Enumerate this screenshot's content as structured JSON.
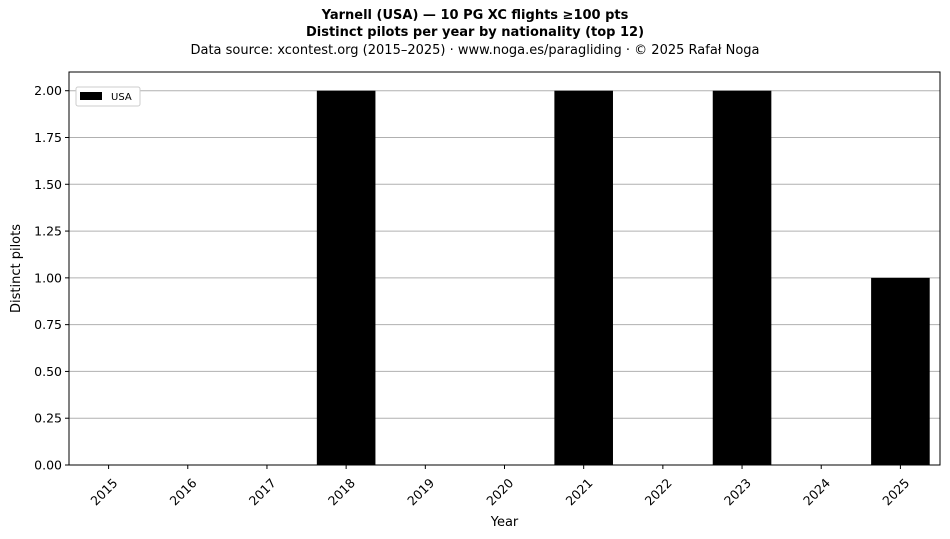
{
  "header": {
    "title": "Yarnell (USA)  —  10 PG XC flights ≥100 pts",
    "subtitle": "Distinct pilots per year by nationality (top 12)",
    "source": "Data source: xcontest.org (2015–2025)  ·  www.noga.es/paragliding  ·  © 2025 Rafał Noga"
  },
  "chart_data": {
    "type": "bar",
    "title": "Yarnell (USA)  —  10 PG XC flights ≥100 pts",
    "subtitle": "Distinct pilots per year by nationality (top 12)",
    "xlabel": "Year",
    "ylabel": "Distinct pilots",
    "categories": [
      "2015",
      "2016",
      "2017",
      "2018",
      "2019",
      "2020",
      "2021",
      "2022",
      "2023",
      "2024",
      "2025"
    ],
    "series": [
      {
        "name": "USA",
        "color": "#000000",
        "values": [
          0,
          0,
          0,
          2,
          0,
          0,
          2,
          0,
          2,
          0,
          1
        ]
      }
    ],
    "ylim": [
      0,
      2.1
    ],
    "yticks": [
      "0.00",
      "0.25",
      "0.50",
      "0.75",
      "1.00",
      "1.25",
      "1.50",
      "1.75",
      "2.00"
    ],
    "grid": "y",
    "legend": "top-left"
  }
}
